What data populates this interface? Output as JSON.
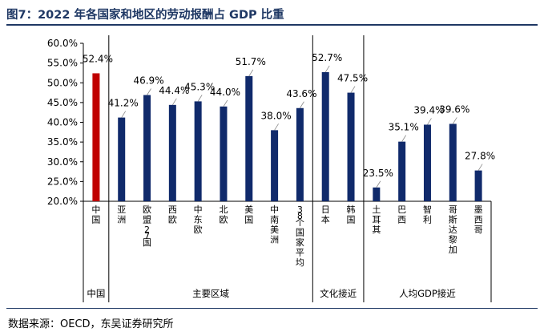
{
  "header": {
    "title": "图7：2022 年各国家和地区的劳动报酬占 GDP 比重"
  },
  "footer": {
    "source": "数据来源：OECD，东吴证券研究所"
  },
  "chart_data": {
    "type": "bar",
    "title": "",
    "xlabel": "",
    "ylabel": "",
    "ylim": [
      20,
      60
    ],
    "y_ticks": [
      "20.0%",
      "25.0%",
      "30.0%",
      "35.0%",
      "40.0%",
      "45.0%",
      "50.0%",
      "55.0%",
      "60.0%"
    ],
    "categories": [
      "中国",
      "亚洲",
      "欧盟27国",
      "西欧",
      "中东欧",
      "北欧",
      "美国",
      "中南美洲",
      "38个国家平均",
      "日本",
      "韩国",
      "土耳其",
      "巴西",
      "智利",
      "哥斯达黎加",
      "墨西哥"
    ],
    "values": [
      52.4,
      41.2,
      46.9,
      44.4,
      45.3,
      44.0,
      51.7,
      38.0,
      43.6,
      52.7,
      47.5,
      23.5,
      35.1,
      39.4,
      39.6,
      27.8
    ],
    "value_labels": [
      "52.4%",
      "41.2%",
      "46.9%",
      "44.4%",
      "45.3%",
      "44.0%",
      "51.7%",
      "38.0%",
      "43.6%",
      "52.7%",
      "47.5%",
      "23.5%",
      "35.1%",
      "39.4%",
      "39.6%",
      "27.8%"
    ],
    "groups": [
      {
        "label": "中国",
        "count": 1
      },
      {
        "label": "主要区域",
        "count": 8
      },
      {
        "label": "文化接近",
        "count": 2
      },
      {
        "label": "人均GDP接近",
        "count": 5
      }
    ],
    "colors": {
      "highlight": "#c00000",
      "bar": "#102a6b"
    },
    "highlight_index": 0,
    "grid": false,
    "legend": "none"
  }
}
